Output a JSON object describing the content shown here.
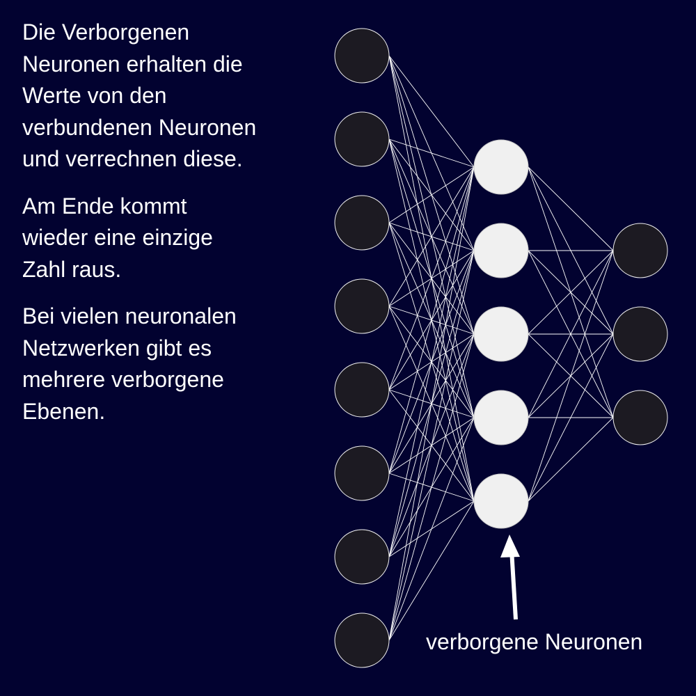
{
  "description": {
    "paragraph_1": "Die Verborgenen\nNeuronen erhalten die\nWerte von den\nverbundenen Neuronen\nund verrechnen diese.",
    "paragraph_2": "Am Ende kommt\nwieder eine einzige\nZahl raus.",
    "paragraph_3": "Bei vielen neuronalen\nNetzwerken gibt es\nmehrere verborgene\nEbenen."
  },
  "network": {
    "layers": [
      {
        "role": "input",
        "count": 8
      },
      {
        "role": "hidden",
        "count": 5
      },
      {
        "role": "output",
        "count": 3
      }
    ],
    "colors": {
      "background": "#020230",
      "dark_neuron": "#1c1a22",
      "hidden_neuron": "#f0f0f0",
      "connection": "#ffffff",
      "arrow": "#ffffff"
    }
  },
  "caption": {
    "hidden_label": "verborgene Neuronen"
  }
}
